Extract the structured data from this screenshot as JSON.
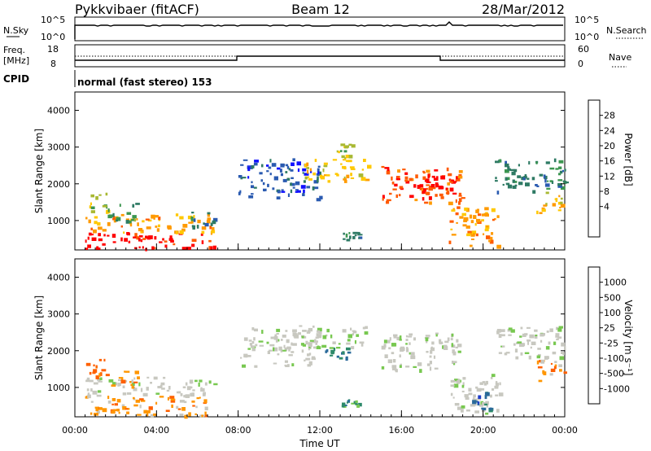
{
  "header": {
    "radar": "Pykkvibaer (fitACF)",
    "beam": "Beam 12",
    "date": "28/Mar/2012"
  },
  "nsky_panel": {
    "left_label": "N.Sky",
    "left_ticks": [
      "10^5",
      "10^0"
    ],
    "right_label": "N.Search",
    "right_ticks": [
      "10^5",
      "10^0"
    ]
  },
  "freq_panel": {
    "left_label_1": "Freq.",
    "left_label_2": "[MHz]",
    "left_ticks": [
      "18",
      "8"
    ],
    "right_label": "Nave",
    "right_ticks": [
      "60",
      "0"
    ]
  },
  "cpid_panel": {
    "label": "CPID",
    "mode": "normal (fast stereo) 153"
  },
  "chart_data": [
    {
      "type": "heatmap",
      "title": "Power",
      "ylabel": "Slant Range [km]",
      "yticks": [
        "4000",
        "3000",
        "2000",
        "1000"
      ],
      "ylim": [
        200,
        4500
      ],
      "xlim": [
        0,
        24
      ],
      "colorbar": {
        "label": "Power [dB]",
        "ticks": [
          "28",
          "24",
          "20",
          "16",
          "12",
          "8",
          "4"
        ],
        "colors": [
          "#ff0000",
          "#ff5a00",
          "#ff9a00",
          "#ffc800",
          "#a8b832",
          "#3c9650",
          "#2e7a64",
          "#2a5ab0",
          "#1010ff"
        ]
      },
      "regions": [
        {
          "t0": 0.5,
          "t1": 6.8,
          "r0": 250,
          "r1": 700,
          "level": 0
        },
        {
          "t0": 0.5,
          "t1": 6.8,
          "r0": 700,
          "r1": 1200,
          "level": 2
        },
        {
          "t0": 0.5,
          "t1": 1.6,
          "r0": 1200,
          "r1": 1800,
          "level": 4
        },
        {
          "t0": 1.6,
          "t1": 3.2,
          "r0": 1000,
          "r1": 1500,
          "level": 5
        },
        {
          "t0": 5.5,
          "t1": 6.8,
          "r0": 800,
          "r1": 1300,
          "level": 6
        },
        {
          "t0": 8.0,
          "t1": 12.0,
          "r0": 1600,
          "r1": 2700,
          "level": 7
        },
        {
          "t0": 11.0,
          "t1": 14.5,
          "r0": 2100,
          "r1": 2700,
          "level": 3
        },
        {
          "t0": 12.8,
          "t1": 13.6,
          "r0": 2700,
          "r1": 3100,
          "level": 4
        },
        {
          "t0": 13.0,
          "t1": 14.0,
          "r0": 500,
          "r1": 700,
          "level": 6
        },
        {
          "t0": 15.0,
          "t1": 19.0,
          "r0": 1500,
          "r1": 2500,
          "level": 1
        },
        {
          "t0": 16.8,
          "t1": 18.6,
          "r0": 1700,
          "r1": 2300,
          "level": 0
        },
        {
          "t0": 18.3,
          "t1": 20.8,
          "r0": 300,
          "r1": 1400,
          "level": 2
        },
        {
          "t0": 20.5,
          "t1": 24.0,
          "r0": 1800,
          "r1": 2700,
          "level": 6
        },
        {
          "t0": 22.6,
          "t1": 24.0,
          "r0": 1200,
          "r1": 1800,
          "level": 3
        }
      ]
    },
    {
      "type": "heatmap",
      "title": "Velocity",
      "ylabel": "Slant Range [km]",
      "yticks": [
        "4000",
        "3000",
        "2000",
        "1000"
      ],
      "ylim": [
        200,
        4500
      ],
      "xlim": [
        0,
        24
      ],
      "xticks": [
        "00:00",
        "04:00",
        "08:00",
        "12:00",
        "16:00",
        "20:00",
        "00:00"
      ],
      "xlabel": "Time UT",
      "colorbar": {
        "label": "Velocity [m s⁻¹]",
        "ticks": [
          "1000",
          "500",
          "100",
          "25",
          "-25",
          "-100",
          "-500",
          "-1000"
        ],
        "colors": [
          "#1e3cc8",
          "#2a6a9a",
          "#2e8a6a",
          "#78c850",
          "#c8c8c0",
          "#c8c8c0",
          "#ff9600",
          "#ff6000",
          "#ff0000"
        ]
      },
      "regions": [
        {
          "t0": 0.5,
          "t1": 6.8,
          "r0": 250,
          "r1": 800,
          "level": 6
        },
        {
          "t0": 0.5,
          "t1": 6.8,
          "r0": 800,
          "r1": 1300,
          "level": 4
        },
        {
          "t0": 0.5,
          "t1": 1.6,
          "r0": 1300,
          "r1": 1800,
          "level": 7
        },
        {
          "t0": 1.6,
          "t1": 3.2,
          "r0": 1000,
          "r1": 1500,
          "level": 6
        },
        {
          "t0": 8.0,
          "t1": 12.0,
          "r0": 1600,
          "r1": 2700,
          "level": 4
        },
        {
          "t0": 11.0,
          "t1": 14.5,
          "r0": 2100,
          "r1": 2700,
          "level": 4
        },
        {
          "t0": 12.2,
          "t1": 13.4,
          "r0": 1800,
          "r1": 2100,
          "level": 2
        },
        {
          "t0": 13.0,
          "t1": 14.0,
          "r0": 500,
          "r1": 700,
          "level": 2
        },
        {
          "t0": 15.0,
          "t1": 19.0,
          "r0": 1500,
          "r1": 2500,
          "level": 4
        },
        {
          "t0": 18.3,
          "t1": 20.8,
          "r0": 300,
          "r1": 1400,
          "level": 4
        },
        {
          "t0": 19.3,
          "t1": 20.4,
          "r0": 400,
          "r1": 900,
          "level": 1
        },
        {
          "t0": 20.5,
          "t1": 24.0,
          "r0": 1800,
          "r1": 2700,
          "level": 4
        },
        {
          "t0": 22.6,
          "t1": 24.0,
          "r0": 1200,
          "r1": 1800,
          "level": 6
        }
      ]
    }
  ]
}
